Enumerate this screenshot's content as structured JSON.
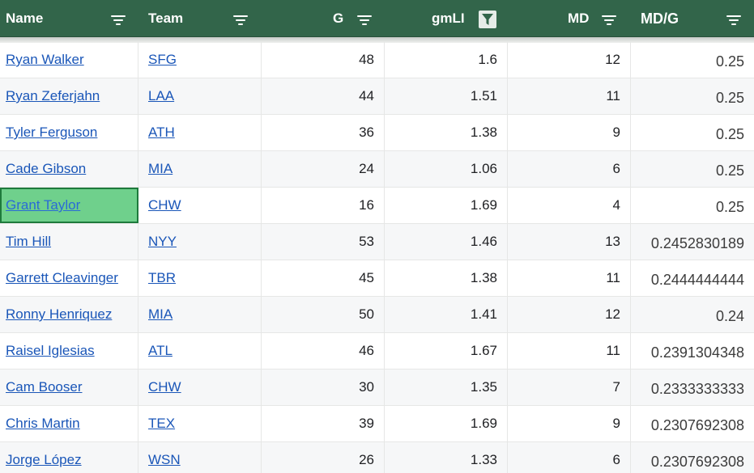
{
  "colors": {
    "header_bg": "#32654a",
    "header_text": "#ffffff",
    "link": "#1a56b8",
    "selected_cell": "#6fd08c",
    "selected_border": "#1e7a3c",
    "alt_row": "#f6f7f8"
  },
  "header": {
    "columns": [
      {
        "label": "Name",
        "icon": "filter-icon"
      },
      {
        "label": "Team",
        "icon": "filter-icon"
      },
      {
        "label": "G",
        "icon": "filter-icon"
      },
      {
        "label": "gmLI",
        "icon": "filter-active-icon"
      },
      {
        "label": "MD",
        "icon": "filter-icon"
      },
      {
        "label": "MD/G",
        "icon": "filter-icon"
      }
    ]
  },
  "rows": [
    {
      "name": "Ryan Walker",
      "team": "SFG",
      "g": "48",
      "gmli": "1.6",
      "md": "12",
      "mdg": "0.25"
    },
    {
      "name": "Ryan Zeferjahn",
      "team": "LAA",
      "g": "44",
      "gmli": "1.51",
      "md": "11",
      "mdg": "0.25"
    },
    {
      "name": "Tyler Ferguson",
      "team": "ATH",
      "g": "36",
      "gmli": "1.38",
      "md": "9",
      "mdg": "0.25"
    },
    {
      "name": "Cade Gibson",
      "team": "MIA",
      "g": "24",
      "gmli": "1.06",
      "md": "6",
      "mdg": "0.25"
    },
    {
      "name": "Grant Taylor",
      "team": "CHW",
      "g": "16",
      "gmli": "1.69",
      "md": "4",
      "mdg": "0.25",
      "selected": true
    },
    {
      "name": "Tim Hill",
      "team": "NYY",
      "g": "53",
      "gmli": "1.46",
      "md": "13",
      "mdg": "0.2452830189"
    },
    {
      "name": "Garrett Cleavinger",
      "team": "TBR",
      "g": "45",
      "gmli": "1.38",
      "md": "11",
      "mdg": "0.2444444444"
    },
    {
      "name": "Ronny Henriquez",
      "team": "MIA",
      "g": "50",
      "gmli": "1.41",
      "md": "12",
      "mdg": "0.24"
    },
    {
      "name": "Raisel Iglesias",
      "team": "ATL",
      "g": "46",
      "gmli": "1.67",
      "md": "11",
      "mdg": "0.2391304348"
    },
    {
      "name": "Cam Booser",
      "team": "CHW",
      "g": "30",
      "gmli": "1.35",
      "md": "7",
      "mdg": "0.2333333333"
    },
    {
      "name": "Chris Martin",
      "team": "TEX",
      "g": "39",
      "gmli": "1.69",
      "md": "9",
      "mdg": "0.2307692308"
    },
    {
      "name": "Jorge López",
      "team": "WSN",
      "g": "26",
      "gmli": "1.33",
      "md": "6",
      "mdg": "0.2307692308"
    }
  ]
}
